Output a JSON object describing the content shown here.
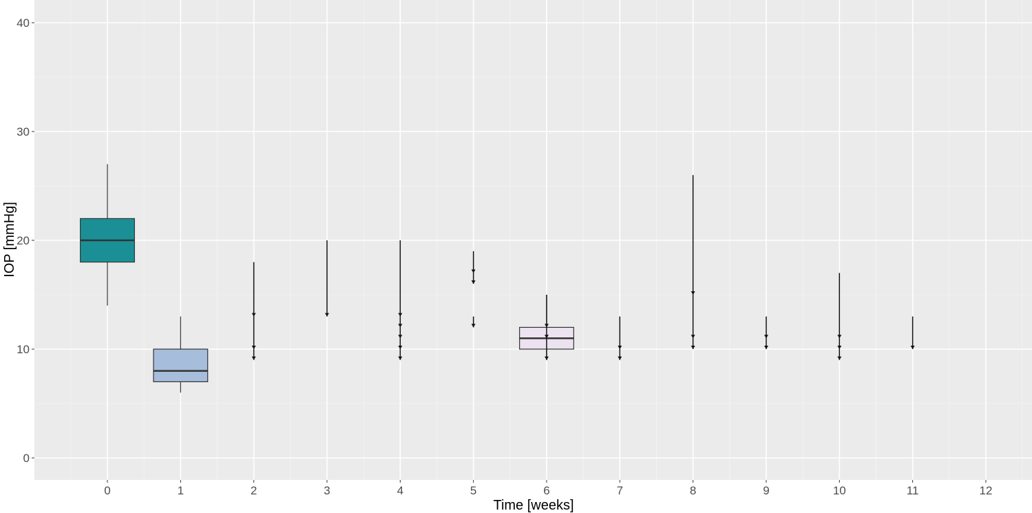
{
  "chart_data": {
    "type": "boxplot",
    "xlabel": "Time [weeks]",
    "ylabel": "IOP [mmHg]",
    "xlim": [
      -1,
      12.7
    ],
    "ylim": [
      -2,
      42
    ],
    "x_ticks": [
      0,
      1,
      2,
      3,
      4,
      5,
      6,
      7,
      8,
      9,
      10,
      11,
      12
    ],
    "y_ticks": [
      0,
      10,
      20,
      30,
      40
    ],
    "grid": true,
    "background": "#ebebeb",
    "boxes": [
      {
        "x": 0,
        "q1": 18,
        "median": 20,
        "q3": 22,
        "whisker_low": 14,
        "whisker_high": 27,
        "color": "#1a9096"
      },
      {
        "x": 1,
        "q1": 7,
        "median": 8,
        "q3": 10,
        "whisker_low": 6,
        "whisker_high": 13,
        "color": "#a6bddb"
      },
      {
        "x": 6,
        "q1": 10,
        "median": 11,
        "q3": 12,
        "whisker_low": 9,
        "whisker_high": 15,
        "color": "#ece2f0"
      }
    ],
    "arrow_segments": [
      {
        "x": 2,
        "from": 18,
        "arrows_at": [
          13,
          10,
          9
        ]
      },
      {
        "x": 3,
        "from": 20,
        "arrows_at": [
          13
        ]
      },
      {
        "x": 4,
        "from": 20,
        "arrows_at": [
          13,
          12,
          11,
          10,
          9
        ]
      },
      {
        "x": 5,
        "from": 19,
        "arrows_at": [
          17,
          16
        ]
      },
      {
        "x": 5,
        "from": 13,
        "arrows_at": [
          12
        ]
      },
      {
        "x": 6,
        "from": 15,
        "arrows_at": [
          12,
          11,
          9
        ]
      },
      {
        "x": 7,
        "from": 13,
        "arrows_at": [
          10,
          9
        ]
      },
      {
        "x": 8,
        "from": 26,
        "arrows_at": [
          15,
          11,
          10
        ]
      },
      {
        "x": 9,
        "from": 13,
        "arrows_at": [
          11,
          10
        ]
      },
      {
        "x": 10,
        "from": 17,
        "arrows_at": [
          11,
          10,
          9
        ]
      },
      {
        "x": 11,
        "from": 13,
        "arrows_at": [
          10
        ]
      }
    ]
  }
}
